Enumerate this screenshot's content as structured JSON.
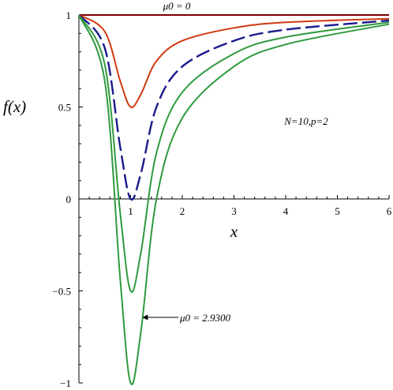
{
  "chart_data": {
    "type": "line",
    "xlabel": "x",
    "ylabel": "f(x)",
    "xlim": [
      0,
      6
    ],
    "ylim": [
      -1,
      1
    ],
    "x_ticks": [
      "1",
      "2",
      "3",
      "4",
      "5",
      "6"
    ],
    "y_ticks": [
      "−1",
      "−0.5",
      "0",
      "0.5",
      "1"
    ],
    "grid": false,
    "parameter_text": "N=10,p=2",
    "annotations": {
      "top": "μ0 = 0",
      "bottom": "μ0 = 2.9300"
    },
    "series": [
      {
        "color": "#7f0000",
        "style": "solid",
        "min_x": 1,
        "min_y": 1,
        "x": [
          0,
          1,
          2,
          3,
          4,
          5,
          6
        ],
        "y": [
          1,
          1,
          1,
          1,
          1,
          1,
          1
        ]
      },
      {
        "color": "#d03a10",
        "style": "solid",
        "min_x": 1,
        "min_y": 0.5,
        "x": [
          0,
          0.5,
          0.8,
          1,
          1.2,
          1.5,
          2,
          3,
          4,
          6
        ],
        "y": [
          1,
          0.91,
          0.64,
          0.5,
          0.57,
          0.75,
          0.86,
          0.93,
          0.96,
          0.98
        ]
      },
      {
        "color": "#1a1a8c",
        "style": "dashed",
        "min_x": 1,
        "min_y": 0,
        "x": [
          0,
          0.5,
          0.8,
          1,
          1.2,
          1.5,
          2,
          3,
          4,
          6
        ],
        "y": [
          1,
          0.82,
          0.28,
          0,
          0.14,
          0.5,
          0.72,
          0.86,
          0.92,
          0.97
        ]
      },
      {
        "color": "#2e9a3e",
        "style": "solid",
        "min_x": 1,
        "min_y": -0.5,
        "x": [
          0,
          0.5,
          0.8,
          1,
          1.2,
          1.5,
          2,
          3,
          4,
          6
        ],
        "y": [
          1,
          0.73,
          -0.08,
          -0.5,
          -0.29,
          0.25,
          0.58,
          0.79,
          0.88,
          0.96
        ]
      },
      {
        "color": "#2e9a3e",
        "style": "solid",
        "min_x": 1,
        "min_y": -1,
        "x": [
          0,
          0.5,
          0.8,
          1,
          1.2,
          1.5,
          2,
          3,
          4,
          6
        ],
        "y": [
          1,
          0.64,
          -0.44,
          -1,
          -0.72,
          0,
          0.44,
          0.72,
          0.84,
          0.95
        ]
      }
    ]
  }
}
